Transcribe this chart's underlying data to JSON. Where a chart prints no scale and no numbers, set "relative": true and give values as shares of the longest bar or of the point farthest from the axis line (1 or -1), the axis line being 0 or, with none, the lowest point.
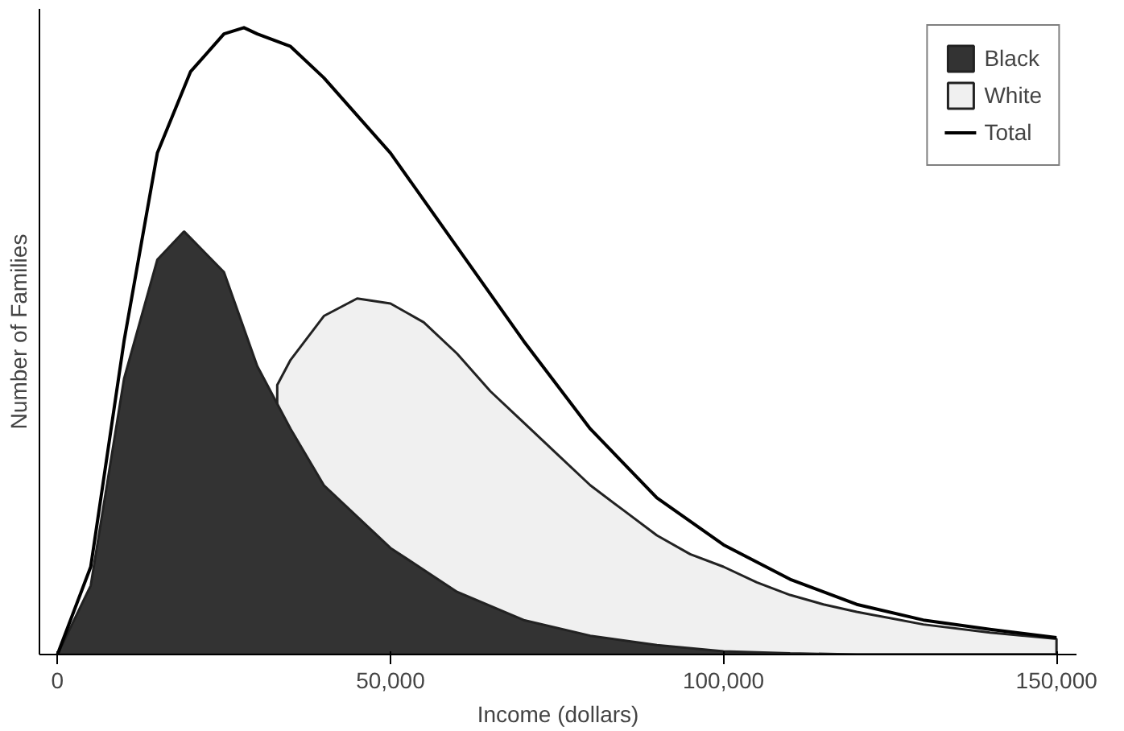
{
  "chart_data": {
    "type": "area",
    "relative": true,
    "xlabel": "Income (dollars)",
    "ylabel": "Number of Families",
    "xlim": [
      -2700,
      153000
    ],
    "xticks": [
      0,
      {
        "value": 50000,
        "label": "50,000"
      },
      {
        "value": 100000,
        "label": "100,000"
      },
      {
        "value": 150000,
        "label": "150,000"
      }
    ],
    "legend": "top right",
    "grid": false,
    "series": [
      {
        "name": "Black",
        "color": "#333333",
        "x": [
          0,
          5000,
          10000,
          15000,
          19000,
          25000,
          30000,
          35000,
          40000,
          50000,
          60000,
          70000,
          80000,
          90000,
          100000,
          110000,
          120000,
          130000,
          140000,
          150000
        ],
        "values": [
          0,
          0.11,
          0.44,
          0.63,
          0.675,
          0.61,
          0.46,
          0.36,
          0.27,
          0.17,
          0.1,
          0.055,
          0.03,
          0.015,
          0.005,
          0.002,
          0,
          0,
          0,
          0
        ]
      },
      {
        "name": "White",
        "color": "#f0f0f0",
        "x": [
          33000,
          35000,
          40000,
          45000,
          50000,
          55000,
          60000,
          65000,
          70000,
          75000,
          80000,
          85000,
          90000,
          95000,
          100000,
          105000,
          110000,
          115000,
          120000,
          125000,
          130000,
          140000,
          150000
        ],
        "values": [
          0.43,
          0.47,
          0.54,
          0.568,
          0.56,
          0.53,
          0.48,
          0.42,
          0.37,
          0.32,
          0.27,
          0.23,
          0.19,
          0.16,
          0.14,
          0.115,
          0.095,
          0.08,
          0.068,
          0.058,
          0.048,
          0.035,
          0.025
        ]
      },
      {
        "name": "Total",
        "type": "line",
        "color": "#000000",
        "x": [
          0,
          5000,
          10000,
          15000,
          20000,
          25000,
          28000,
          30000,
          35000,
          40000,
          50000,
          60000,
          70000,
          80000,
          90000,
          100000,
          110000,
          120000,
          130000,
          140000,
          150000
        ],
        "values": [
          0,
          0.14,
          0.5,
          0.8,
          0.93,
          0.99,
          1.0,
          0.99,
          0.97,
          0.92,
          0.8,
          0.65,
          0.5,
          0.36,
          0.25,
          0.175,
          0.12,
          0.08,
          0.055,
          0.04,
          0.027
        ]
      }
    ]
  }
}
